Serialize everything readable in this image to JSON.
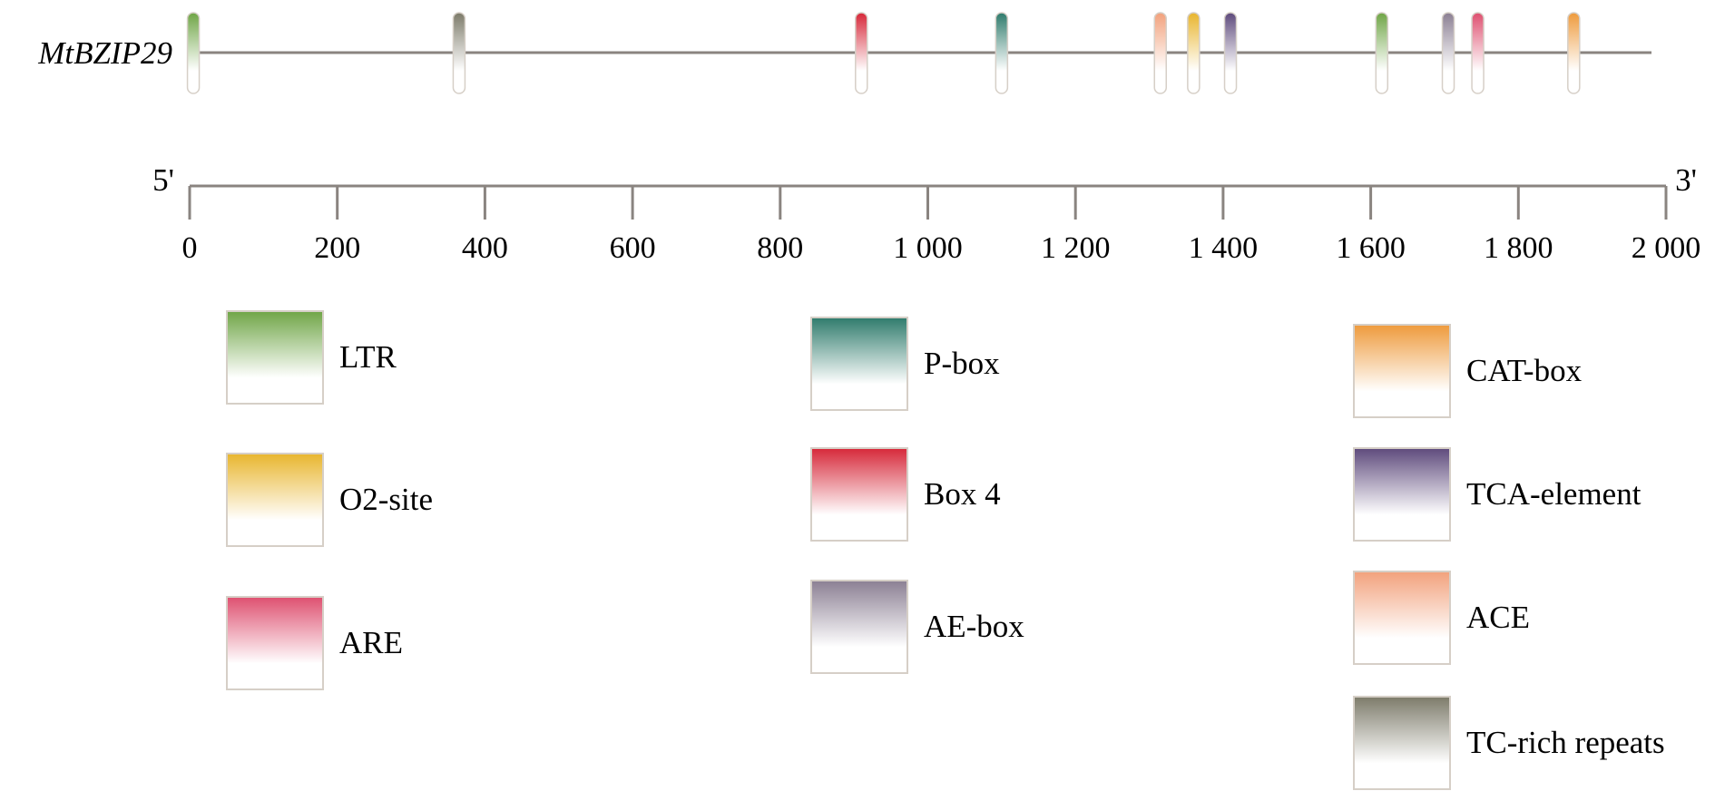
{
  "gene": {
    "name": "MtBZIP29"
  },
  "axis": {
    "five_prime": "5'",
    "three_prime": "3'",
    "min": 0,
    "max": 2000,
    "ticks": [
      {
        "value": 0,
        "label": "0"
      },
      {
        "value": 200,
        "label": "200"
      },
      {
        "value": 400,
        "label": "400"
      },
      {
        "value": 600,
        "label": "600"
      },
      {
        "value": 800,
        "label": "800"
      },
      {
        "value": 1000,
        "label": "1 000"
      },
      {
        "value": 1200,
        "label": "1 200"
      },
      {
        "value": 1400,
        "label": "1 400"
      },
      {
        "value": 1600,
        "label": "1 600"
      },
      {
        "value": 1800,
        "label": "1 800"
      },
      {
        "value": 2000,
        "label": "2 000"
      }
    ]
  },
  "elements": [
    {
      "name": "LTR",
      "color": "#6fa546"
    },
    {
      "name": "O2-site",
      "color": "#e8b52e"
    },
    {
      "name": "ARE",
      "color": "#de5070"
    },
    {
      "name": "P-box",
      "color": "#2f7b6c"
    },
    {
      "name": "Box 4",
      "color": "#d62839"
    },
    {
      "name": "AE-box",
      "color": "#8b7f93"
    },
    {
      "name": "CAT-box",
      "color": "#ee9a3c"
    },
    {
      "name": "TCA-element",
      "color": "#5e4a7c"
    },
    {
      "name": "ACE",
      "color": "#f2a17c"
    },
    {
      "name": "TC-rich repeats",
      "color": "#7d7b6a"
    }
  ],
  "sites": [
    {
      "position": 5,
      "element": "LTR"
    },
    {
      "position": 365,
      "element": "TC-rich repeats"
    },
    {
      "position": 910,
      "element": "Box 4"
    },
    {
      "position": 1100,
      "element": "P-box"
    },
    {
      "position": 1315,
      "element": "ACE"
    },
    {
      "position": 1360,
      "element": "O2-site"
    },
    {
      "position": 1410,
      "element": "TCA-element"
    },
    {
      "position": 1615,
      "element": "LTR"
    },
    {
      "position": 1705,
      "element": "AE-box"
    },
    {
      "position": 1745,
      "element": "ARE"
    },
    {
      "position": 1875,
      "element": "CAT-box"
    }
  ],
  "legend": {
    "columns": [
      [
        "LTR",
        "O2-site",
        "ARE"
      ],
      [
        "P-box",
        "Box 4",
        "AE-box"
      ],
      [
        "CAT-box",
        "TCA-element",
        "ACE",
        "TC-rich repeats"
      ]
    ]
  }
}
